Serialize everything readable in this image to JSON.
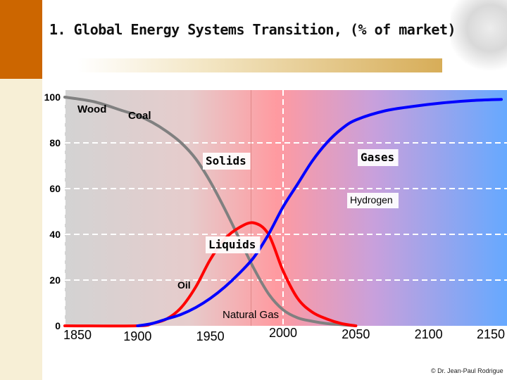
{
  "title": "1. Global Energy Systems Transition, (% of market)",
  "credit": "© Dr. Jean-Paul Rodrigue",
  "colors": {
    "accent": "#cc6600",
    "solids_curve": "#808080",
    "liquids_curve": "#ff0000",
    "gases_curve": "#0000ff",
    "bg_left": "#d3d3d3",
    "bg_mid": "#ff9aa0",
    "bg_right": "#66a9ff"
  },
  "chart_data": {
    "type": "line",
    "title": "1. Global Energy Systems Transition, (% of market)",
    "xlabel": "",
    "ylabel": "",
    "xlim": [
      1850,
      2150
    ],
    "ylim": [
      0,
      100
    ],
    "x_ticks": [
      "1850",
      "1900",
      "1950",
      "2000",
      "2050",
      "2100",
      "2150"
    ],
    "y_ticks": [
      "0",
      "20",
      "40",
      "60",
      "80",
      "100"
    ],
    "grid": true,
    "series": [
      {
        "name": "Solids",
        "x": [
          1850,
          1870,
          1890,
          1900,
          1910,
          1920,
          1930,
          1940,
          1950,
          1960,
          1970,
          1980,
          1990,
          2000,
          2010,
          2020,
          2030,
          2040,
          2050
        ],
        "y": [
          100,
          98,
          94,
          92,
          89,
          85,
          80,
          73,
          63,
          51,
          38,
          25,
          14,
          7,
          3.5,
          2,
          1,
          0.5,
          0
        ]
      },
      {
        "name": "Liquids",
        "x": [
          1850,
          1900,
          1910,
          1920,
          1930,
          1940,
          1950,
          1960,
          1970,
          1980,
          1990,
          2000,
          2010,
          2020,
          2030,
          2040,
          2050
        ],
        "y": [
          0,
          0,
          1,
          3,
          8,
          17,
          29,
          38,
          43,
          45,
          40,
          24,
          12,
          6,
          3,
          1,
          0
        ]
      },
      {
        "name": "Gases",
        "x": [
          1900,
          1910,
          1920,
          1930,
          1940,
          1950,
          1960,
          1970,
          1980,
          1990,
          2000,
          2010,
          2020,
          2030,
          2040,
          2050,
          2070,
          2090,
          2110,
          2130,
          2150
        ],
        "y": [
          0,
          1,
          3,
          5,
          8,
          12,
          17,
          23,
          30,
          40,
          52,
          62,
          72,
          80,
          86,
          90,
          94,
          96,
          97.5,
          98.5,
          99
        ]
      }
    ],
    "annotations": [
      "Wood",
      "Coal",
      "Solids",
      "Gases",
      "Hydrogen",
      "Liquids",
      "Oil",
      "Natural Gas"
    ]
  }
}
